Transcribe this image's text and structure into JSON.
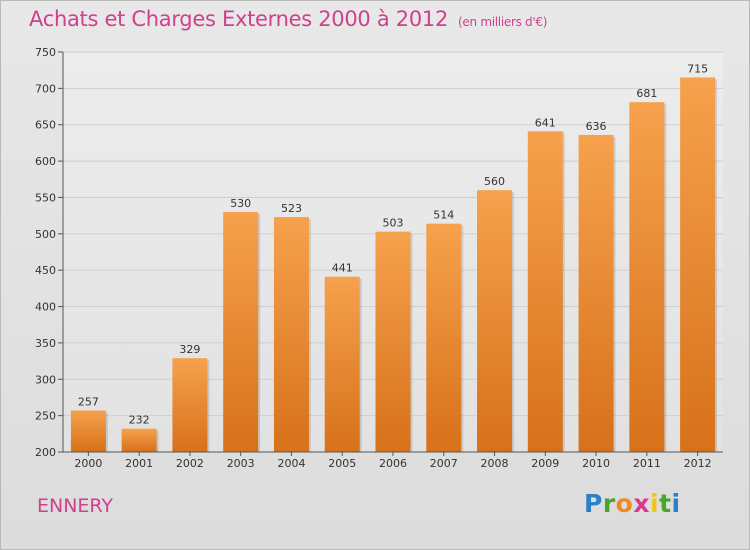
{
  "header": {
    "title": "Achats et Charges Externes 2000 à 2012",
    "subtitle": "(en milliers d'€)"
  },
  "footer": {
    "commune": "ENNERY",
    "logo_letters": [
      "P",
      "r",
      "o",
      "x",
      "i",
      "t",
      "i"
    ],
    "logo_colors": [
      "#2a7fc9",
      "#4aa52e",
      "#f08a1d",
      "#d83a8f",
      "#f0c419",
      "#4aa52e",
      "#2a7fc9"
    ]
  },
  "colors": {
    "bar_top": "#f6a14d",
    "bar_bottom": "#d7711a",
    "title": "#d0408c"
  },
  "chart_data": {
    "type": "bar",
    "categories": [
      "2000",
      "2001",
      "2002",
      "2003",
      "2004",
      "2005",
      "2006",
      "2007",
      "2008",
      "2009",
      "2010",
      "2011",
      "2012"
    ],
    "values": [
      257,
      232,
      329,
      530,
      523,
      441,
      503,
      514,
      560,
      641,
      636,
      681,
      715
    ],
    "ylim": [
      200,
      750
    ],
    "yticks": [
      200,
      250,
      300,
      350,
      400,
      450,
      500,
      550,
      600,
      650,
      700,
      750
    ],
    "grid": true
  }
}
